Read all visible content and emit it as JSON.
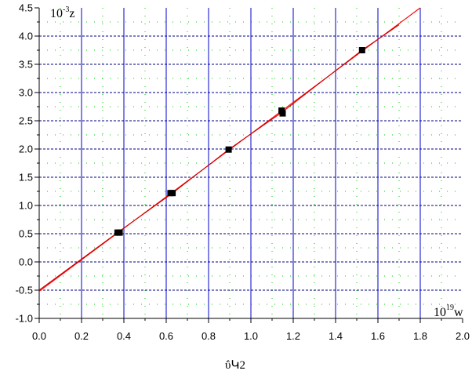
{
  "chart_data": {
    "type": "scatter",
    "title": "",
    "caption": "ΰԿ2",
    "xlabel": {
      "scale": "10",
      "exponent": "19",
      "var": "w"
    },
    "ylabel": {
      "scale": "10",
      "exponent": "-3",
      "var": "z"
    },
    "xlim": [
      0.0,
      2.0
    ],
    "ylim": [
      -1.0,
      4.5
    ],
    "x_ticks": [
      0.0,
      0.2,
      0.4,
      0.6,
      0.8,
      1.0,
      1.2,
      1.4,
      1.6,
      1.8,
      2.0
    ],
    "x_tick_labels": [
      "0.0",
      "0.2",
      "0.4",
      "0.6",
      "0.8",
      "1.0",
      "1.2",
      "1.4",
      "1.6",
      "1.8",
      "2.0"
    ],
    "y_ticks": [
      -1.0,
      -0.5,
      0.0,
      0.5,
      1.0,
      1.5,
      2.0,
      2.5,
      3.0,
      3.5,
      4.0,
      4.5
    ],
    "y_tick_labels": [
      "-1.0",
      "-0.5",
      "0.0",
      "0.5",
      "1.0",
      "1.5",
      "2.0",
      "2.5",
      "3.0",
      "3.5",
      "4.0",
      "4.5"
    ],
    "grid": true,
    "series": [
      {
        "kind": "points",
        "marker": "square",
        "color": "#000000",
        "x": [
          0.37,
          0.38,
          0.62,
          0.63,
          0.895,
          1.145,
          1.15,
          1.525
        ],
        "y": [
          0.52,
          0.52,
          1.22,
          1.22,
          1.99,
          2.68,
          2.63,
          3.75
        ]
      },
      {
        "kind": "fit",
        "color": "#ff0000",
        "x": [
          0.0,
          1.8
        ],
        "y": [
          -0.52,
          4.5
        ]
      },
      {
        "kind": "fit",
        "color": "#cc0000",
        "x": [
          0.0,
          0.37,
          0.63,
          0.895,
          1.15,
          1.525,
          1.7
        ],
        "y": [
          -0.5,
          0.52,
          1.22,
          1.99,
          2.66,
          3.75,
          4.2
        ]
      }
    ],
    "colors": {
      "major_grid_x": "#0000cc",
      "major_grid_y": "#000080",
      "minor_grid": "#00cc00",
      "axes": "#000000"
    }
  }
}
